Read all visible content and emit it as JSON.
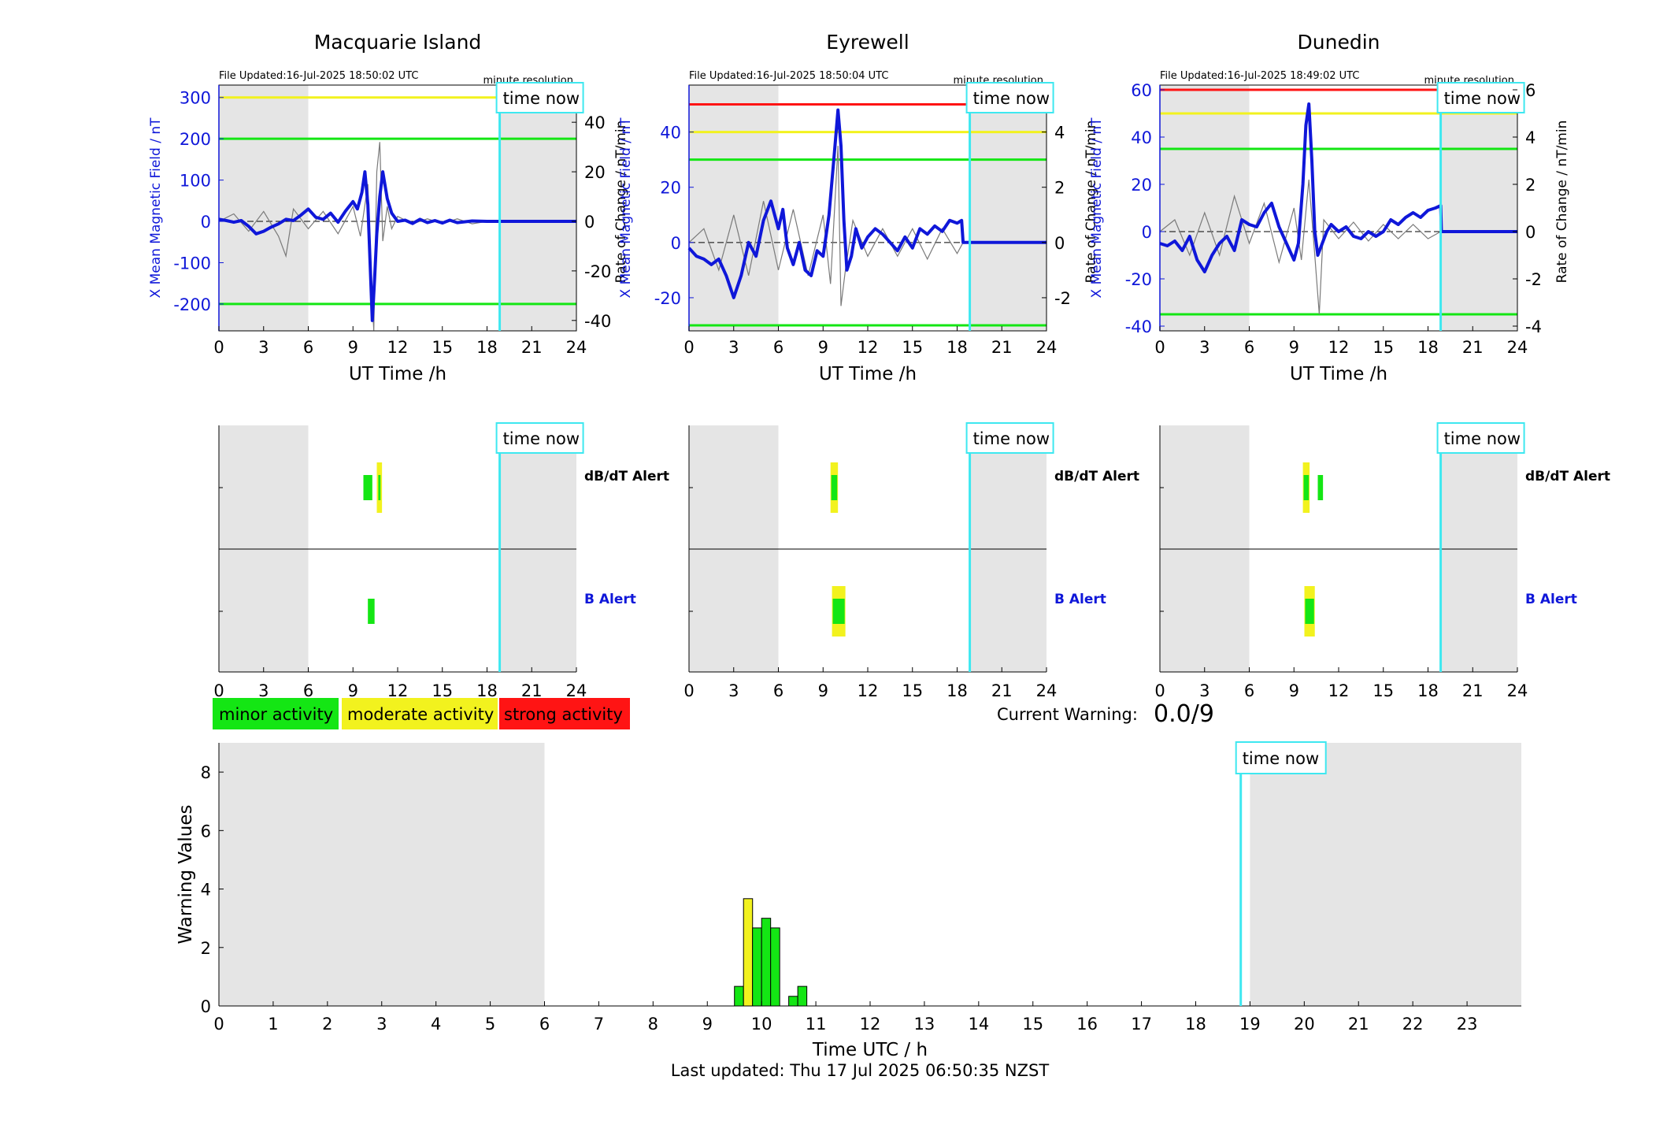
{
  "colors": {
    "blue": "#0f17d9",
    "grey_shade": "#e5e5e5",
    "cyan": "#3ee8f0",
    "green": "#14e614",
    "yellow": "#f2f21e",
    "red": "#ff1414",
    "trace_grey": "#7a7a7a"
  },
  "now_label": "time now",
  "minute_resolution": "minute resolution",
  "magnetometer_panels": [
    {
      "station": "Macquarie Island",
      "file_updated": "File Updated:16-Jul-2025 18:50:02 UTC",
      "ylabel_left": "X Mean Magnetic Field / nT",
      "ylabel_right": "Rate of Change / nT/min",
      "xlabel": "UT Time /h",
      "xlim": [
        0,
        24
      ],
      "xticks": [
        "0",
        "3",
        "6",
        "9",
        "12",
        "15",
        "18",
        "21",
        "24"
      ],
      "ylim_left": [
        -265,
        330
      ],
      "yticks_left": [
        "300",
        "200",
        "100",
        "0",
        "-100",
        "-200"
      ],
      "ylim_right": [
        -44.2,
        55
      ],
      "yticks_right": [
        "40",
        "20",
        "0",
        "-20",
        "-40"
      ],
      "shade_until": 6,
      "now_hour": 18.85,
      "thresholds": [
        {
          "value": 300,
          "color": "yellow"
        },
        {
          "value": 200,
          "color": "green"
        },
        {
          "value": -200,
          "color": "green"
        }
      ],
      "x_field": [
        [
          0,
          5
        ],
        [
          0.5,
          2
        ],
        [
          1,
          -2
        ],
        [
          1.5,
          2
        ],
        [
          2,
          -12
        ],
        [
          2.5,
          -30
        ],
        [
          3,
          -24
        ],
        [
          3.5,
          -14
        ],
        [
          4,
          -6
        ],
        [
          4.5,
          5
        ],
        [
          5,
          2
        ],
        [
          5.5,
          15
        ],
        [
          6,
          30
        ],
        [
          6.5,
          10
        ],
        [
          7,
          5
        ],
        [
          7.5,
          20
        ],
        [
          8,
          -2
        ],
        [
          8.5,
          25
        ],
        [
          9,
          48
        ],
        [
          9.3,
          30
        ],
        [
          9.6,
          70
        ],
        [
          9.8,
          120
        ],
        [
          10,
          40
        ],
        [
          10.15,
          -100
        ],
        [
          10.3,
          -240
        ],
        [
          10.45,
          -140
        ],
        [
          10.6,
          -30
        ],
        [
          10.8,
          60
        ],
        [
          11,
          120
        ],
        [
          11.3,
          55
        ],
        [
          11.6,
          20
        ],
        [
          12,
          0
        ],
        [
          12.5,
          3
        ],
        [
          13,
          -5
        ],
        [
          13.5,
          5
        ],
        [
          14,
          -3
        ],
        [
          14.5,
          2
        ],
        [
          15,
          -4
        ],
        [
          15.5,
          3
        ],
        [
          16,
          -3
        ],
        [
          17,
          1
        ],
        [
          18,
          0
        ],
        [
          18.85,
          0
        ],
        [
          24,
          0
        ]
      ],
      "rate_of_change": [
        [
          0,
          0
        ],
        [
          1,
          3
        ],
        [
          2,
          -4
        ],
        [
          3,
          4
        ],
        [
          4,
          -6
        ],
        [
          4.5,
          -14
        ],
        [
          5,
          5
        ],
        [
          6,
          -3
        ],
        [
          7,
          4
        ],
        [
          8,
          -5
        ],
        [
          9,
          6
        ],
        [
          9.5,
          -6
        ],
        [
          10,
          15
        ],
        [
          10.2,
          -22
        ],
        [
          10.4,
          -44
        ],
        [
          10.6,
          20
        ],
        [
          10.8,
          32
        ],
        [
          11,
          -8
        ],
        [
          11.3,
          6
        ],
        [
          11.6,
          -3
        ],
        [
          12,
          2
        ],
        [
          13,
          -1
        ],
        [
          14,
          1
        ],
        [
          15,
          -1
        ],
        [
          16,
          1
        ],
        [
          17,
          -1
        ],
        [
          18,
          0
        ],
        [
          18.85,
          0
        ]
      ],
      "dbdt_alert": [
        {
          "start": 9.7,
          "end": 10.3,
          "level": "minor"
        },
        {
          "start": 10.6,
          "end": 10.95,
          "level": "moderate"
        },
        {
          "start": 10.7,
          "end": 10.85,
          "level": "minor"
        }
      ],
      "b_alert": [
        {
          "start": 10.0,
          "end": 10.45,
          "level": "minor"
        }
      ]
    },
    {
      "station": "Eyrewell",
      "file_updated": "File Updated:16-Jul-2025 18:50:04 UTC",
      "ylabel_left": "X Mean Magnetic Field / nT",
      "ylabel_right": "Rate of Change / nT/min",
      "xlabel": "UT Time /h",
      "xlim": [
        0,
        24
      ],
      "xticks": [
        "0",
        "3",
        "6",
        "9",
        "12",
        "15",
        "18",
        "21",
        "24"
      ],
      "ylim_left": [
        -32,
        57
      ],
      "yticks_left": [
        "40",
        "20",
        "0",
        "-20"
      ],
      "ylim_right": [
        -3.2,
        5.7
      ],
      "yticks_right": [
        "4",
        "2",
        "0",
        "-2"
      ],
      "shade_until": 6,
      "now_hour": 18.85,
      "thresholds": [
        {
          "value": 50,
          "color": "red"
        },
        {
          "value": 40,
          "color": "yellow"
        },
        {
          "value": 30,
          "color": "green"
        },
        {
          "value": -30,
          "color": "green"
        }
      ],
      "x_field": [
        [
          0,
          -2
        ],
        [
          0.5,
          -5
        ],
        [
          1,
          -6
        ],
        [
          1.5,
          -8
        ],
        [
          2,
          -6
        ],
        [
          2.5,
          -12
        ],
        [
          3,
          -20
        ],
        [
          3.5,
          -12
        ],
        [
          4,
          0
        ],
        [
          4.5,
          -5
        ],
        [
          5,
          8
        ],
        [
          5.5,
          15
        ],
        [
          6,
          5
        ],
        [
          6.3,
          12
        ],
        [
          6.6,
          -2
        ],
        [
          7,
          -8
        ],
        [
          7.4,
          0
        ],
        [
          7.8,
          -10
        ],
        [
          8.2,
          -12
        ],
        [
          8.6,
          -3
        ],
        [
          9,
          -5
        ],
        [
          9.4,
          10
        ],
        [
          9.8,
          35
        ],
        [
          10,
          48
        ],
        [
          10.2,
          35
        ],
        [
          10.4,
          8
        ],
        [
          10.6,
          -10
        ],
        [
          10.9,
          -5
        ],
        [
          11.2,
          5
        ],
        [
          11.6,
          -2
        ],
        [
          12,
          2
        ],
        [
          12.5,
          5
        ],
        [
          13,
          3
        ],
        [
          13.5,
          0
        ],
        [
          14,
          -3
        ],
        [
          14.5,
          2
        ],
        [
          15,
          -2
        ],
        [
          15.5,
          5
        ],
        [
          16,
          3
        ],
        [
          16.5,
          6
        ],
        [
          17,
          4
        ],
        [
          17.5,
          8
        ],
        [
          18,
          7
        ],
        [
          18.3,
          8
        ],
        [
          18.4,
          0
        ],
        [
          24,
          0
        ]
      ],
      "rate_of_change": [
        [
          0,
          0
        ],
        [
          1,
          0.5
        ],
        [
          2,
          -1
        ],
        [
          3,
          1
        ],
        [
          4,
          -1.2
        ],
        [
          5,
          1.5
        ],
        [
          6,
          -1
        ],
        [
          7,
          1.2
        ],
        [
          8,
          -1.2
        ],
        [
          9,
          1
        ],
        [
          9.5,
          -1.5
        ],
        [
          10,
          3.5
        ],
        [
          10.2,
          -2.3
        ],
        [
          10.5,
          -1
        ],
        [
          11,
          0.8
        ],
        [
          12,
          -0.5
        ],
        [
          13,
          0.5
        ],
        [
          14,
          -0.5
        ],
        [
          15,
          0.5
        ],
        [
          16,
          -0.6
        ],
        [
          17,
          0.5
        ],
        [
          18,
          -0.4
        ],
        [
          18.4,
          0
        ]
      ],
      "dbdt_alert": [
        {
          "start": 9.5,
          "end": 10.0,
          "level": "moderate"
        },
        {
          "start": 9.55,
          "end": 9.95,
          "level": "minor"
        }
      ],
      "b_alert": [
        {
          "start": 9.6,
          "end": 10.5,
          "level": "moderate"
        },
        {
          "start": 9.65,
          "end": 10.45,
          "level": "minor"
        }
      ]
    },
    {
      "station": "Dunedin",
      "file_updated": "File Updated:16-Jul-2025 18:49:02 UTC",
      "ylabel_left": "X Mean Magnetic Field / nT",
      "ylabel_right": "Rate of Change / nT/min",
      "xlabel": "UT Time /h",
      "xlim": [
        0,
        24
      ],
      "xticks": [
        "0",
        "3",
        "6",
        "9",
        "12",
        "15",
        "18",
        "21",
        "24"
      ],
      "ylim_left": [
        -42,
        62
      ],
      "yticks_left": [
        "60",
        "40",
        "20",
        "0",
        "-20",
        "-40"
      ],
      "ylim_right": [
        -4.2,
        6.2
      ],
      "yticks_right": [
        "6",
        "4",
        "2",
        "0",
        "-2",
        "-4"
      ],
      "shade_until": 6,
      "now_hour": 18.85,
      "thresholds": [
        {
          "value": 60,
          "color": "red"
        },
        {
          "value": 50,
          "color": "yellow"
        },
        {
          "value": 35,
          "color": "green"
        },
        {
          "value": -35,
          "color": "green"
        }
      ],
      "x_field": [
        [
          0,
          -5
        ],
        [
          0.5,
          -6
        ],
        [
          1,
          -4
        ],
        [
          1.5,
          -8
        ],
        [
          2,
          -2
        ],
        [
          2.5,
          -12
        ],
        [
          3,
          -17
        ],
        [
          3.5,
          -10
        ],
        [
          4,
          -5
        ],
        [
          4.5,
          -2
        ],
        [
          5,
          -8
        ],
        [
          5.5,
          5
        ],
        [
          6,
          3
        ],
        [
          6.5,
          2
        ],
        [
          7,
          8
        ],
        [
          7.5,
          12
        ],
        [
          8,
          2
        ],
        [
          8.5,
          -5
        ],
        [
          9,
          -12
        ],
        [
          9.3,
          -5
        ],
        [
          9.6,
          20
        ],
        [
          9.8,
          45
        ],
        [
          10,
          54
        ],
        [
          10.2,
          30
        ],
        [
          10.4,
          0
        ],
        [
          10.6,
          -10
        ],
        [
          10.9,
          -5
        ],
        [
          11.2,
          0
        ],
        [
          11.5,
          3
        ],
        [
          12,
          0
        ],
        [
          12.5,
          2
        ],
        [
          13,
          -2
        ],
        [
          13.5,
          -3
        ],
        [
          14,
          0
        ],
        [
          14.5,
          -2
        ],
        [
          15,
          0
        ],
        [
          15.5,
          5
        ],
        [
          16,
          3
        ],
        [
          16.5,
          6
        ],
        [
          17,
          8
        ],
        [
          17.5,
          6
        ],
        [
          18,
          9
        ],
        [
          18.5,
          10
        ],
        [
          18.85,
          11
        ],
        [
          18.9,
          0
        ],
        [
          24,
          0
        ]
      ],
      "rate_of_change": [
        [
          0,
          0
        ],
        [
          1,
          0.5
        ],
        [
          2,
          -1
        ],
        [
          3,
          0.8
        ],
        [
          4,
          -1
        ],
        [
          5,
          1.5
        ],
        [
          6,
          -0.5
        ],
        [
          7,
          1.2
        ],
        [
          8,
          -1.3
        ],
        [
          9,
          1
        ],
        [
          9.5,
          -1.2
        ],
        [
          10,
          2.2
        ],
        [
          10.4,
          -1
        ],
        [
          10.7,
          -3.5
        ],
        [
          11,
          0.5
        ],
        [
          12,
          -0.3
        ],
        [
          13,
          0.4
        ],
        [
          14,
          -0.4
        ],
        [
          15,
          0.3
        ],
        [
          16,
          -0.3
        ],
        [
          17,
          0.3
        ],
        [
          18,
          -0.3
        ],
        [
          18.85,
          0
        ]
      ],
      "dbdt_alert": [
        {
          "start": 9.6,
          "end": 10.05,
          "level": "moderate"
        },
        {
          "start": 9.65,
          "end": 10.0,
          "level": "minor"
        },
        {
          "start": 10.6,
          "end": 10.95,
          "level": "minor"
        }
      ],
      "b_alert": [
        {
          "start": 9.7,
          "end": 10.4,
          "level": "moderate"
        },
        {
          "start": 9.75,
          "end": 10.35,
          "level": "minor"
        }
      ]
    }
  ],
  "alert_labels": {
    "dbdt": "dB/dT Alert",
    "b": "B Alert"
  },
  "legend": [
    {
      "label": "minor activity",
      "color": "green"
    },
    {
      "label": "moderate activity",
      "color": "yellow"
    },
    {
      "label": "strong activity",
      "color": "red"
    }
  ],
  "current_warning": {
    "label": "Current Warning:",
    "value": "0.0/9"
  },
  "chart_data": {
    "type": "bar",
    "title": "",
    "xlabel": "Time UTC / h",
    "ylabel": "Warning Values",
    "xlim": [
      0,
      24
    ],
    "ylim": [
      0,
      9
    ],
    "xticks": [
      "0",
      "1",
      "2",
      "3",
      "4",
      "5",
      "6",
      "7",
      "8",
      "9",
      "10",
      "11",
      "12",
      "13",
      "14",
      "15",
      "16",
      "17",
      "18",
      "19",
      "20",
      "21",
      "22",
      "23"
    ],
    "yticks": [
      "0",
      "2",
      "4",
      "6",
      "8"
    ],
    "shade_until": 6,
    "shade_from": 19,
    "now_hour": 18.83,
    "bar_width_h": 0.167,
    "bars": [
      {
        "x": 9.5,
        "value": 0.67,
        "color": "green"
      },
      {
        "x": 9.667,
        "value": 3.67,
        "color": "yellow"
      },
      {
        "x": 9.833,
        "value": 2.67,
        "color": "green"
      },
      {
        "x": 10.0,
        "value": 3.0,
        "color": "green"
      },
      {
        "x": 10.167,
        "value": 2.67,
        "color": "green"
      },
      {
        "x": 10.5,
        "value": 0.33,
        "color": "green"
      },
      {
        "x": 10.667,
        "value": 0.67,
        "color": "green"
      }
    ]
  },
  "footer": "Last updated: Thu 17 Jul 2025 06:50:35 NZST"
}
